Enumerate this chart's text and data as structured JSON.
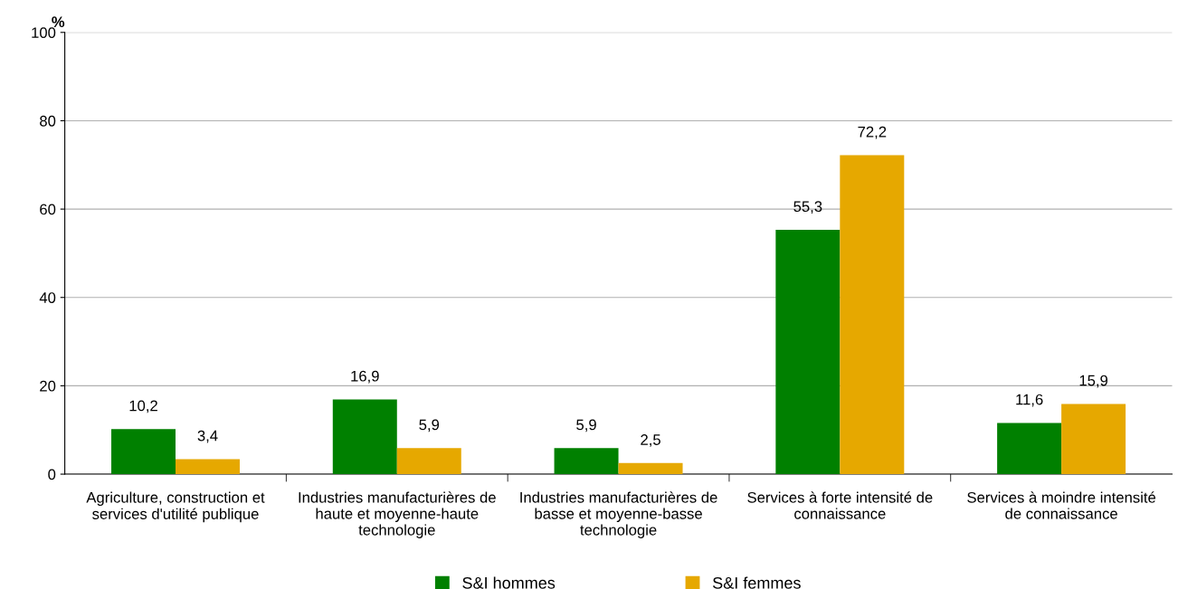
{
  "chart_data": {
    "type": "bar",
    "ylabel": "%",
    "categories": [
      "Agriculture, construction et\nservices d'utilité publique",
      "Industries manufacturières de\nhaute et moyenne-haute\ntechnologie",
      "Industries manufacturières de\nbasse et moyenne-basse\ntechnologie",
      "Services à forte intensité de\nconnaissance",
      "Services à moindre intensité\nde connaissance"
    ],
    "series": [
      {
        "name": "S&I hommes",
        "color": "#008000",
        "values": [
          10.2,
          16.9,
          5.9,
          55.3,
          11.6
        ],
        "value_labels": [
          "10,2",
          "16,9",
          "5,9",
          "55,3",
          "11,6"
        ]
      },
      {
        "name": "S&I femmes",
        "color": "#e6a800",
        "values": [
          3.4,
          5.9,
          2.5,
          72.2,
          15.9
        ],
        "value_labels": [
          "3,4",
          "5,9",
          "2,5",
          "72,2",
          "15,9"
        ]
      }
    ],
    "ylim": [
      0,
      100
    ],
    "yticks": [
      0,
      20,
      40,
      60,
      80,
      100
    ],
    "grid": "y",
    "legend": "bottom"
  }
}
